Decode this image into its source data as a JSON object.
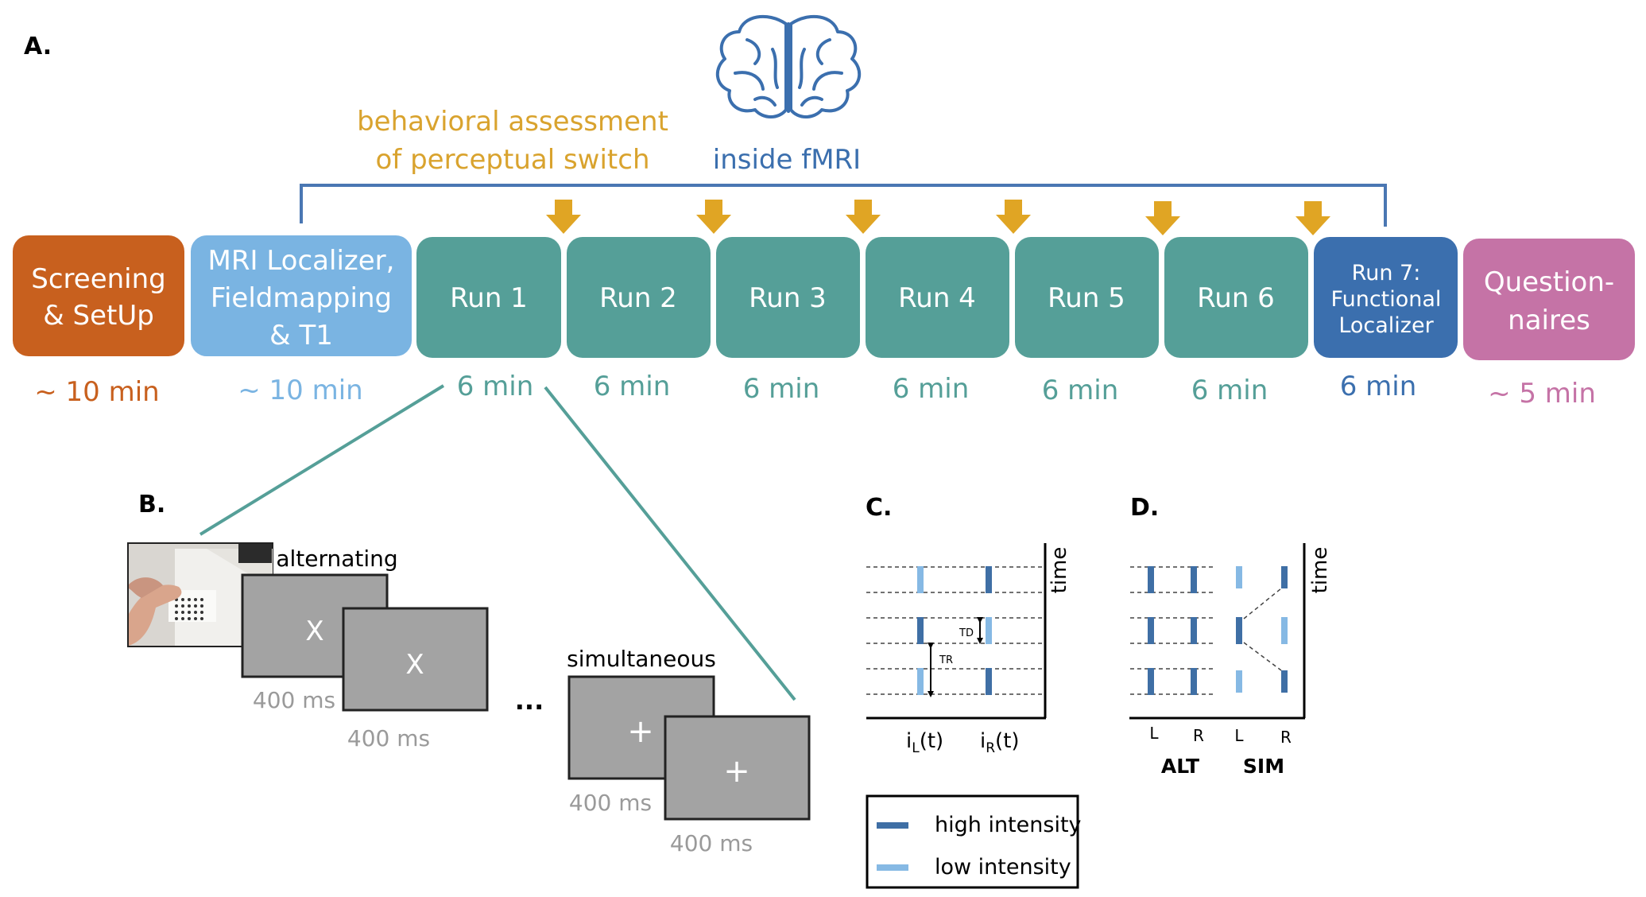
{
  "panel_labels": {
    "a": "A.",
    "b": "B.",
    "c": "C.",
    "d": "D."
  },
  "header": {
    "behavioral_line1": "behavioral assessment",
    "behavioral_line2": "of perceptual switch",
    "inside_fmri": "inside fMRI"
  },
  "colors": {
    "screening": "#c8601e",
    "mri_localizer": "#7ab4e2",
    "run": "#559f98",
    "run7": "#3b6fae",
    "questionnaires": "#c573a6",
    "arrow": "#e0a524",
    "behavioral_text": "#d9a32e",
    "fmri_text": "#3b6fae",
    "bracket": "#4a77b3",
    "gray_box": "#a3a3a3",
    "high_intensity": "#3f6fa5",
    "low_intensity": "#86b9e4"
  },
  "timeline": {
    "screening": {
      "line1": "Screening",
      "line2": "& SetUp",
      "duration": "~ 10 min"
    },
    "mri": {
      "line1": "MRI Localizer,",
      "line2": "Fieldmapping",
      "line3": "& T1",
      "duration": "~ 10 min"
    },
    "run1": {
      "label": "Run 1",
      "duration": "6 min"
    },
    "run2": {
      "label": "Run 2",
      "duration": "6 min"
    },
    "run3": {
      "label": "Run 3",
      "duration": "6 min"
    },
    "run4": {
      "label": "Run 4",
      "duration": "6 min"
    },
    "run5": {
      "label": "Run 5",
      "duration": "6 min"
    },
    "run6": {
      "label": "Run 6",
      "duration": "6 min"
    },
    "run7": {
      "line1": "Run 7:",
      "line2": "Functional",
      "line3": "Localizer",
      "duration": "6 min"
    },
    "questionnaires": {
      "line1": "Question-",
      "line2": "naires",
      "duration": "~ 5 min"
    }
  },
  "panel_b": {
    "alternating": "alternating",
    "simultaneous": "simultaneous",
    "symbol_x": "X",
    "symbol_plus": "+",
    "ellipsis": "...",
    "duration": "400 ms"
  },
  "panel_c": {
    "time": "time",
    "td": "TD",
    "tr": "TR",
    "il_base": "i",
    "il_sub": "L",
    "il_suffix": "(t)",
    "ir_base": "i",
    "ir_sub": "R",
    "ir_suffix": "(t)",
    "legend_high": "high intensity",
    "legend_low": "low intensity"
  },
  "panel_d": {
    "time": "time",
    "alt_l": "L",
    "alt_r": "R",
    "sim_l": "L",
    "sim_r": "R",
    "alt_label": "ALT",
    "sim_label": "SIM"
  }
}
